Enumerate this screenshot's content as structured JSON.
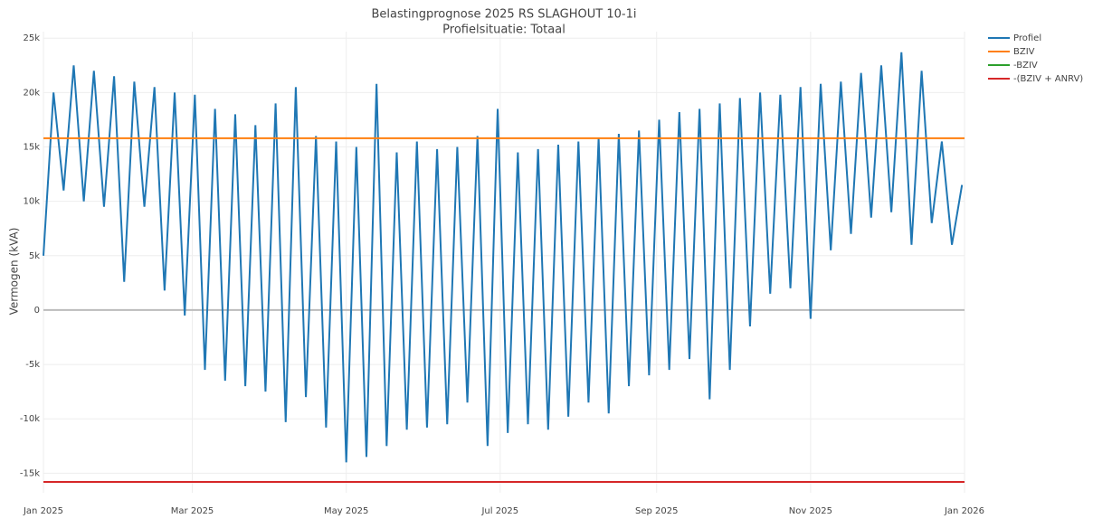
{
  "chart_data": {
    "type": "line",
    "title": "Belastingprognose 2025 RS SLAGHOUT 10-1i",
    "subtitle": "Profielsituatie: Totaal",
    "y_label": "Vermogen (kVA)",
    "xlim": [
      0,
      365
    ],
    "xticks": [
      {
        "value": 0,
        "label": "Jan 2025"
      },
      {
        "value": 59,
        "label": "Mar 2025"
      },
      {
        "value": 120,
        "label": "May 2025"
      },
      {
        "value": 181,
        "label": "Jul 2025"
      },
      {
        "value": 243,
        "label": "Sep 2025"
      },
      {
        "value": 304,
        "label": "Nov 2025"
      },
      {
        "value": 365,
        "label": "Jan 2026"
      }
    ],
    "ylim": [
      -16800,
      25600
    ],
    "yticks": [
      {
        "value": -15000,
        "label": "-15k"
      },
      {
        "value": -10000,
        "label": "-10k"
      },
      {
        "value": -5000,
        "label": "-5k"
      },
      0,
      {
        "value": 5000,
        "label": "5k"
      },
      {
        "value": 10000,
        "label": "10k"
      },
      {
        "value": 15000,
        "label": "15k"
      },
      {
        "value": 20000,
        "label": "20k"
      },
      {
        "value": 25000,
        "label": "25k"
      }
    ],
    "grid": true,
    "legend": "right",
    "series": [
      {
        "name": "Profiel",
        "color": "#1f77b4",
        "x": [
          0,
          4,
          8,
          12,
          16,
          20,
          24,
          28,
          32,
          36,
          40,
          44,
          48,
          52,
          56,
          60,
          64,
          68,
          72,
          76,
          80,
          84,
          88,
          92,
          96,
          100,
          104,
          108,
          112,
          116,
          120,
          124,
          128,
          132,
          136,
          140,
          144,
          148,
          152,
          156,
          160,
          164,
          168,
          172,
          176,
          180,
          184,
          188,
          192,
          196,
          200,
          204,
          208,
          212,
          216,
          220,
          224,
          228,
          232,
          236,
          240,
          244,
          248,
          252,
          256,
          260,
          264,
          268,
          272,
          276,
          280,
          284,
          288,
          292,
          296,
          300,
          304,
          308,
          312,
          316,
          320,
          324,
          328,
          332,
          336,
          340,
          344,
          348,
          352,
          356,
          360,
          364
        ],
        "values": [
          5000,
          20000,
          11000,
          22500,
          10000,
          22000,
          9500,
          21500,
          2600,
          21000,
          9500,
          20500,
          1800,
          20000,
          -500,
          19800,
          -5500,
          18500,
          -6500,
          18000,
          -7000,
          17000,
          -7500,
          19000,
          -10300,
          20500,
          -8000,
          16000,
          -10800,
          15500,
          -14000,
          15000,
          -13500,
          20800,
          -12500,
          14500,
          -11000,
          15500,
          -10800,
          14800,
          -10500,
          15000,
          -8500,
          16000,
          -12500,
          18500,
          -11300,
          14500,
          -10500,
          14800,
          -11000,
          15200,
          -9800,
          15500,
          -8500,
          15800,
          -9500,
          16200,
          -7000,
          16500,
          -6000,
          17500,
          -5500,
          18200,
          -4500,
          18500,
          -8200,
          19000,
          -5500,
          19500,
          -1500,
          20000,
          1500,
          19800,
          2000,
          20500,
          -800,
          20800,
          5500,
          21000,
          7000,
          21800,
          8500,
          22500,
          9000,
          23700,
          6000,
          22000,
          8000,
          15500,
          6000,
          11500
        ]
      },
      {
        "name": "BZIV",
        "color": "#ff7f0e",
        "x": [
          0,
          365
        ],
        "values": [
          15800,
          15800
        ]
      },
      {
        "name": "-BZIV",
        "color": "#2ca02c",
        "x": [
          0,
          365
        ],
        "values": [
          -15800,
          -15800
        ]
      },
      {
        "name": "-(BZIV + ANRV)",
        "color": "#d62728",
        "x": [
          0,
          365
        ],
        "values": [
          -15800,
          -15800
        ]
      }
    ]
  }
}
